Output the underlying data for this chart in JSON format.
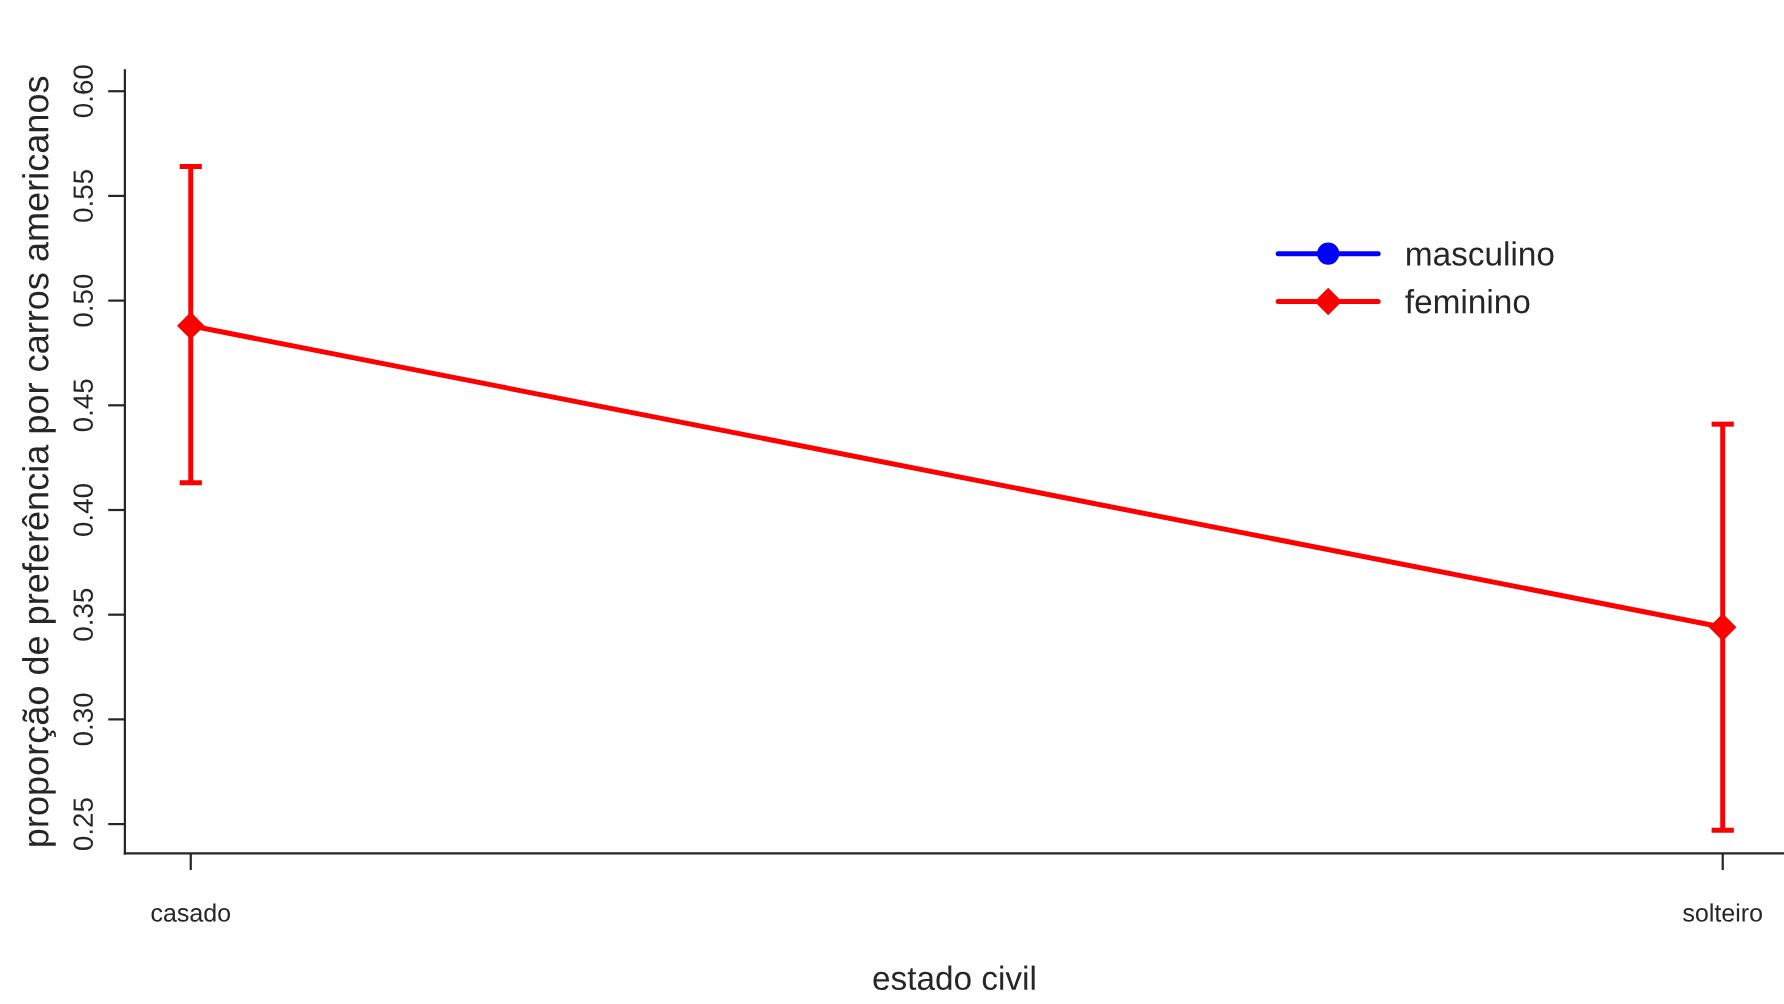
{
  "chart_data": {
    "type": "line",
    "xlabel": "estado civil",
    "ylabel": "proporção de preferência por carros americanos",
    "categories": [
      "casado",
      "solteiro"
    ],
    "series": [
      {
        "name": "masculino",
        "color": "#0000ff",
        "values": [
          null,
          null
        ],
        "marker": "circle"
      },
      {
        "name": "feminino",
        "color": "#ff0000",
        "values": [
          0.488,
          0.344
        ],
        "errors": [
          [
            0.413,
            0.564
          ],
          [
            0.247,
            0.441
          ]
        ],
        "marker": "diamond"
      }
    ],
    "ylim": [
      0.236,
      0.61
    ],
    "yticks": [
      0.25,
      {
        "value": 0.3,
        "label": "0.30"
      },
      0.35,
      {
        "value": 0.4,
        "label": "0.40"
      },
      0.45,
      {
        "value": 0.5,
        "label": "0.50"
      },
      0.55,
      {
        "value": 0.6,
        "label": "0.60"
      }
    ],
    "grid": false,
    "legend": "top right",
    "line_style": "solid"
  }
}
